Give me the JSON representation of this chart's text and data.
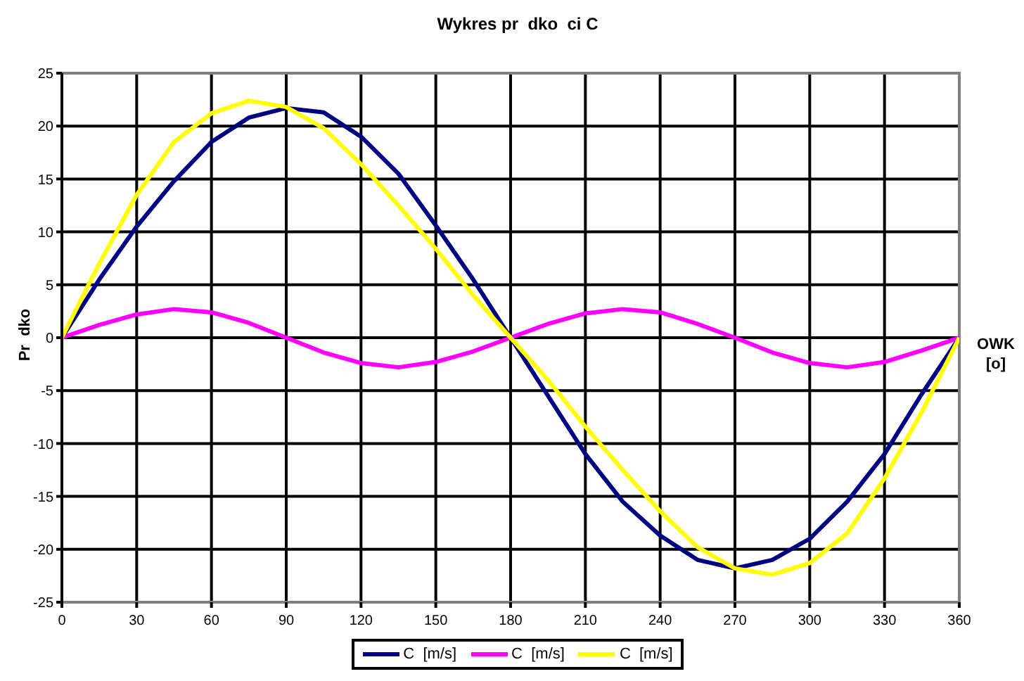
{
  "chart_data": {
    "type": "line",
    "title": "Wykres pr  dko  ci C",
    "xlabel": "OWK [o]",
    "ylabel": "Pr  dko",
    "x": [
      0,
      15,
      30,
      45,
      60,
      75,
      90,
      105,
      120,
      135,
      150,
      165,
      180,
      195,
      210,
      225,
      240,
      255,
      270,
      285,
      300,
      315,
      330,
      345,
      360
    ],
    "series": [
      {
        "name": "C  [m/s]",
        "color": "#000080",
        "values": [
          0,
          5.5,
          10.5,
          14.8,
          18.5,
          20.8,
          21.7,
          21.3,
          19,
          15.5,
          10.6,
          5.5,
          0,
          -5.5,
          -11,
          -15.5,
          -18.7,
          -21,
          -21.8,
          -21,
          -19,
          -15.5,
          -11,
          -5.3,
          0
        ]
      },
      {
        "name": "C  [m/s]",
        "color": "#ff00ff",
        "values": [
          0,
          1.2,
          2.2,
          2.7,
          2.4,
          1.4,
          0,
          -1.4,
          -2.4,
          -2.8,
          -2.3,
          -1.3,
          0,
          1.3,
          2.3,
          2.7,
          2.4,
          1.3,
          0,
          -1.4,
          -2.4,
          -2.8,
          -2.3,
          -1.2,
          0
        ]
      },
      {
        "name": "C  [m/s]",
        "color": "#ffff00",
        "values": [
          0,
          7,
          13.5,
          18.5,
          21.2,
          22.4,
          21.8,
          19.8,
          16.4,
          12.5,
          8.4,
          4,
          0,
          -4,
          -8.4,
          -12.5,
          -16.4,
          -19.8,
          -21.8,
          -22.4,
          -21.3,
          -18.5,
          -13.3,
          -7,
          0
        ]
      }
    ],
    "xlim": [
      0,
      360
    ],
    "xticks": [
      0,
      30,
      60,
      90,
      120,
      150,
      180,
      210,
      240,
      270,
      300,
      330,
      360
    ],
    "ylim": [
      -25,
      25
    ],
    "yticks": [
      -25,
      -20,
      -15,
      -10,
      -5,
      0,
      5,
      10,
      15,
      20,
      25
    ],
    "grid": true,
    "legend": "bottom",
    "marker": "none",
    "line_style": "solid"
  }
}
